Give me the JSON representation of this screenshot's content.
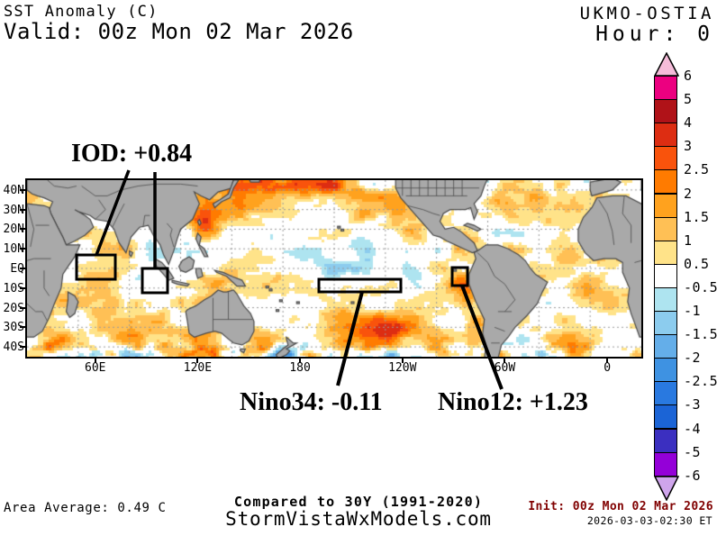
{
  "header": {
    "product": "SST Anomaly (C)",
    "valid": "Valid: 00z Mon 02 Mar 2026",
    "model": "UKMO-OSTIA",
    "hour": "Hour: 0"
  },
  "annotations": {
    "iod": "IOD: +0.84",
    "nino34": "Nino34: -0.11",
    "nino12": "Nino12: +1.23"
  },
  "footer": {
    "area_average": "Area Average: 0.49 C",
    "compared": "Compared to 30Y (1991-2020)",
    "site": "StormVistaWxModels.com",
    "init": "Init: 00z Mon 02 Mar 2026",
    "timestamp": "2026-03-03-02:30 ET"
  },
  "axes": {
    "lat_labels": [
      "40N",
      "30N",
      "20N",
      "10N",
      "EQ",
      "10S",
      "20S",
      "30S",
      "40S"
    ],
    "lat_values": [
      40,
      30,
      20,
      10,
      0,
      -10,
      -20,
      -30,
      -40
    ],
    "lon_labels": [
      "60E",
      "120E",
      "180",
      "120W",
      "60W",
      "0"
    ],
    "lon_values": [
      60,
      120,
      180,
      240,
      300,
      360
    ]
  },
  "chart_data": {
    "type": "heatmap",
    "title": "SST Anomaly (C)",
    "model": "UKMO-OSTIA",
    "valid_time": "00z Mon 02 Mar 2026",
    "init_time": "00z Mon 02 Mar 2026",
    "forecast_hour": 0,
    "baseline": "30Y (1991-2020)",
    "area_average_c": 0.49,
    "indices": {
      "IOD": 0.84,
      "Nino34": -0.11,
      "Nino12": 1.23
    },
    "extent": {
      "lon_start_deg_e": 20,
      "lon_span_deg": 360,
      "lat_min": -45,
      "lat_max": 45
    },
    "colorbar": {
      "labels_top_to_bottom": [
        "6",
        "5",
        "4",
        "3",
        "2.5",
        "2",
        "1.5",
        "1",
        "0.5",
        "-0.5",
        "-1",
        "-1.5",
        "-2",
        "-2.5",
        "-3",
        "-4",
        "-5",
        "-6"
      ],
      "levels_top_to_bottom": [
        6,
        5,
        4,
        3,
        2.5,
        2,
        1.5,
        1,
        0.5,
        -0.5,
        -1,
        -1.5,
        -2,
        -2.5,
        -3,
        -4,
        -5,
        -6
      ],
      "cell_colors_top_to_bottom": [
        "#ec0080",
        "#b01218",
        "#dd2d12",
        "#f9530c",
        "#ff7b00",
        "#ffa21e",
        "#ffc055",
        "#ffe389",
        "#ffffff",
        "#aee4f0",
        "#8cccee",
        "#64aee9",
        "#3e92e2",
        "#2979e0",
        "#1b64d6",
        "#3b2fc0",
        "#9400d8"
      ],
      "over_arrow_color": "#f5bcd9",
      "under_arrow_color": "#cfa5ec"
    },
    "map_colors": {
      "land": "#a9a9a9",
      "border": "#4a4a4a",
      "gridline": "#9a9a9a",
      "ocean_base": "#ffffff"
    },
    "init_text_color": "#800000"
  }
}
